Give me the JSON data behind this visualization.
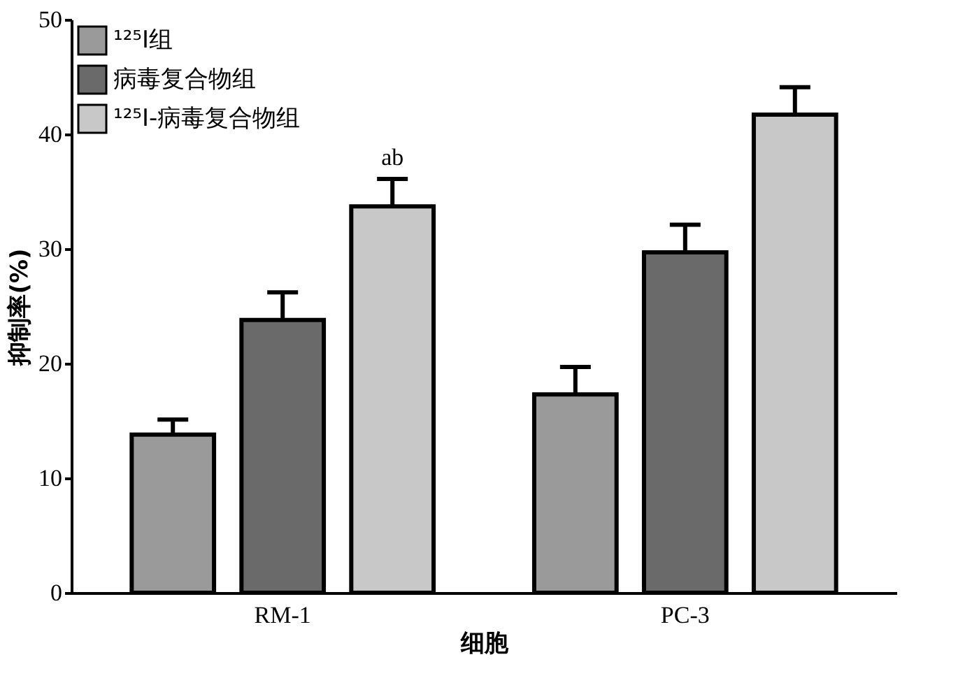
{
  "chart_data": {
    "type": "bar",
    "xlabel": "细胞",
    "ylabel": "抑制率(%)",
    "categories": [
      "RM-1",
      "PC-3"
    ],
    "series": [
      {
        "name": "¹²⁵I组",
        "color": "#9a9a9a",
        "values": [
          13.8,
          17.3
        ],
        "errors": [
          1.3,
          2.4
        ]
      },
      {
        "name": "病毒复合物组",
        "color": "#6a6a6a",
        "values": [
          23.8,
          29.7
        ],
        "errors": [
          2.4,
          2.4
        ]
      },
      {
        "name": "¹²⁵I-病毒复合物组",
        "color": "#c8c8c8",
        "values": [
          33.7,
          41.7
        ],
        "errors": [
          2.4,
          2.4
        ]
      }
    ],
    "annotations": [
      "ab"
    ],
    "ylim": [
      0,
      50
    ],
    "yticks": [
      0,
      10,
      20,
      30,
      40,
      50
    ],
    "grid": false,
    "legend": "top left"
  }
}
